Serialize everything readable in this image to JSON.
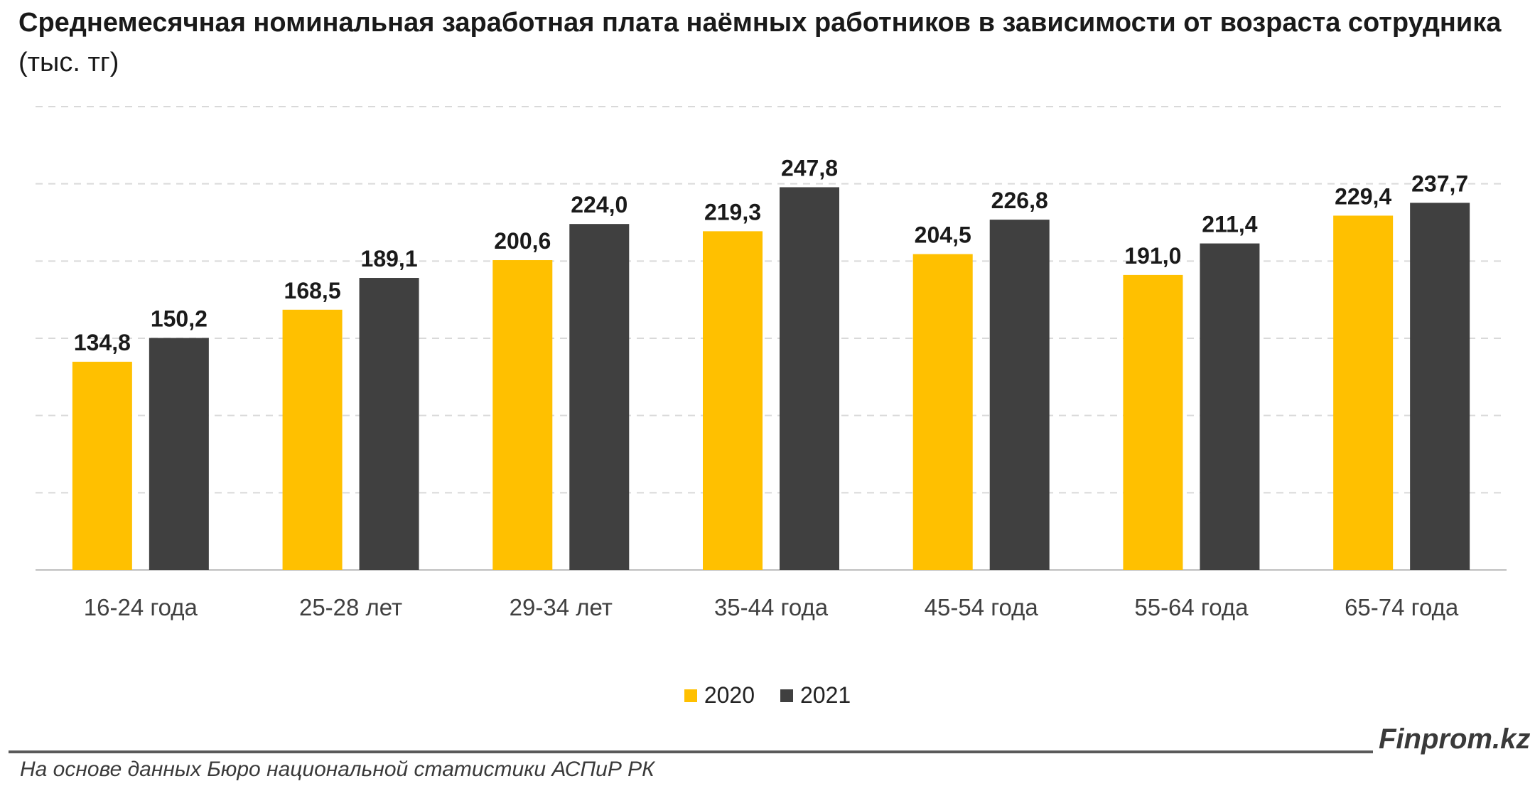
{
  "title": {
    "main": "Среднемесячная номинальная заработная плата наёмных работников в зависимости от возраста сотрудника",
    "unit": "(тыс. тг)"
  },
  "colors": {
    "series_2020": "#FFC000",
    "series_2021": "#404040",
    "grid": "#d9d9d9",
    "axis": "#bfbfbf"
  },
  "chart_data": {
    "type": "bar",
    "categories": [
      "16-24 года",
      "25-28 лет",
      "29-34 лет",
      "35-44 года",
      "45-54 года",
      "55-64 года",
      "65-74 года"
    ],
    "series": [
      {
        "name": "2020",
        "values": [
          134.8,
          168.5,
          200.6,
          219.3,
          204.5,
          191.0,
          229.4
        ],
        "labels": [
          "134,8",
          "168,5",
          "200,6",
          "219,3",
          "204,5",
          "191,0",
          "229,4"
        ]
      },
      {
        "name": "2021",
        "values": [
          150.2,
          189.1,
          224.0,
          247.8,
          226.8,
          211.4,
          237.7
        ],
        "labels": [
          "150,2",
          "189,1",
          "224,0",
          "247,8",
          "226,8",
          "211,4",
          "237,7"
        ]
      }
    ],
    "ylim": [
      0,
      300
    ],
    "grid": true,
    "legend_position": "bottom"
  },
  "brand": "Finprom.kz",
  "source": "На основе данных Бюро национальной статистики АСПиР РК"
}
